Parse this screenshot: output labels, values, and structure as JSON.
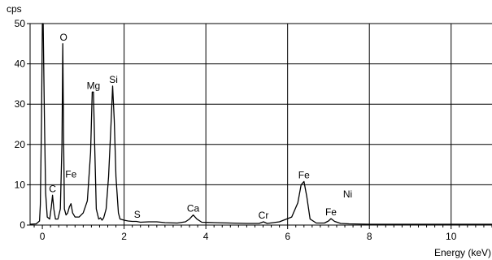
{
  "chart_data": {
    "type": "line",
    "ylabel": "cps",
    "xlabel": "Energy (keV)",
    "xlim": [
      -0.3,
      11
    ],
    "ylim": [
      0,
      50
    ],
    "grid": true,
    "x_ticks": [
      "0",
      "2",
      "4",
      "6",
      "8",
      "10"
    ],
    "x_tick_values": [
      0,
      2,
      4,
      6,
      8,
      10
    ],
    "y_ticks": [
      "0",
      "10",
      "20",
      "30",
      "40",
      "50"
    ],
    "y_tick_values": [
      0,
      10,
      20,
      30,
      40,
      50
    ],
    "series": [
      {
        "x": [
          -0.3,
          -0.15,
          -0.07,
          -0.05,
          -0.02,
          0.0,
          0.02,
          0.05,
          0.08,
          0.12,
          0.18,
          0.22,
          0.25,
          0.28,
          0.32,
          0.38,
          0.44,
          0.48,
          0.5,
          0.52,
          0.54,
          0.58,
          0.62,
          0.66,
          0.7,
          0.74,
          0.8,
          0.9,
          1.0,
          1.1,
          1.18,
          1.22,
          1.25,
          1.28,
          1.32,
          1.38,
          1.42,
          1.46,
          1.5,
          1.56,
          1.62,
          1.68,
          1.72,
          1.76,
          1.8,
          1.86,
          1.9,
          2.0,
          2.1,
          2.2,
          2.3,
          2.4,
          2.6,
          2.8,
          3.0,
          3.3,
          3.5,
          3.6,
          3.69,
          3.78,
          3.9,
          4.2,
          4.6,
          5.0,
          5.3,
          5.41,
          5.5,
          5.8,
          6.1,
          6.25,
          6.33,
          6.4,
          6.47,
          6.55,
          6.7,
          6.9,
          7.0,
          7.06,
          7.15,
          7.3,
          7.5,
          8.0,
          9.0,
          10.0,
          11.0
        ],
        "y": [
          0.2,
          0.3,
          1.0,
          5.0,
          27.0,
          50.0,
          50.0,
          27.0,
          8.0,
          2.0,
          1.5,
          4.5,
          7.4,
          4.0,
          1.5,
          1.5,
          4.0,
          20.0,
          45.0,
          22.0,
          4.0,
          2.5,
          3.0,
          4.5,
          5.3,
          3.0,
          2.0,
          2.0,
          3.0,
          6.0,
          18.0,
          33.0,
          33.0,
          20.0,
          4.0,
          1.5,
          1.8,
          1.2,
          1.8,
          4.0,
          12.0,
          25.0,
          34.5,
          26.0,
          12.0,
          3.0,
          1.5,
          1.2,
          1.0,
          0.9,
          0.9,
          0.7,
          0.8,
          0.8,
          0.6,
          0.5,
          0.8,
          1.5,
          2.5,
          1.5,
          0.7,
          0.6,
          0.5,
          0.4,
          0.4,
          0.8,
          0.4,
          0.8,
          2.0,
          5.5,
          10.0,
          10.8,
          7.0,
          1.5,
          0.5,
          0.5,
          1.0,
          1.6,
          0.9,
          0.4,
          0.3,
          0.2,
          0.2,
          0.2,
          0.2
        ]
      }
    ],
    "annotations": [
      {
        "text": "O",
        "x": 0.52,
        "y": 45.0
      },
      {
        "text": "Mg",
        "x": 1.25,
        "y": 33.0
      },
      {
        "text": "Si",
        "x": 1.74,
        "y": 34.5
      },
      {
        "text": "C",
        "x": 0.25,
        "y": 7.4
      },
      {
        "text": "Fe",
        "x": 0.7,
        "y": 11.0
      },
      {
        "text": "S",
        "x": 2.32,
        "y": 1.0
      },
      {
        "text": "Ca",
        "x": 3.69,
        "y": 2.5
      },
      {
        "text": "Cr",
        "x": 5.41,
        "y": 0.8
      },
      {
        "text": "Fe",
        "x": 6.4,
        "y": 10.8
      },
      {
        "text": "Ni",
        "x": 7.47,
        "y": 6.0
      },
      {
        "text": "Fe",
        "x": 7.06,
        "y": 1.6
      }
    ]
  }
}
